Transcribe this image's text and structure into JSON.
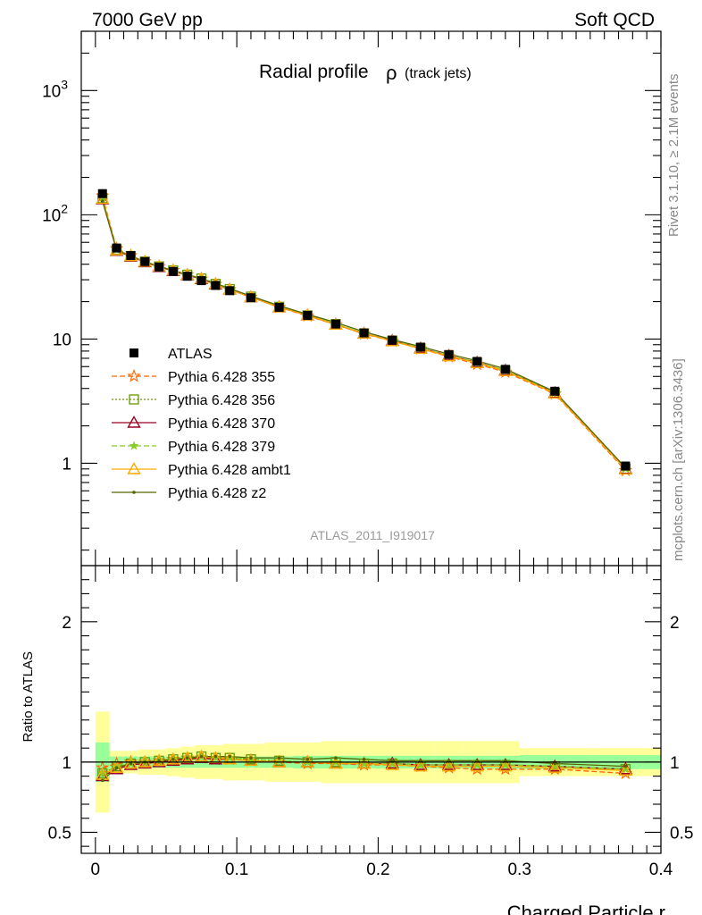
{
  "header": {
    "left": "7000 GeV pp",
    "right": "Soft QCD"
  },
  "side_labels": {
    "top": "Rivet 3.1.10, ≥ 2.1M events",
    "bottom": "mcplots.cern.ch [arXiv:1306.3436]"
  },
  "plot_title": {
    "main": "Radial profile",
    "rho": "ρ",
    "sub": "(track jets)"
  },
  "analysis_id": "ATLAS_2011_I919017",
  "xlabel": "Charged Particle r",
  "ratio_ylabel": "Ratio to ATLAS",
  "main_y_ticks": [
    {
      "value": 1,
      "base": "1",
      "exp": ""
    },
    {
      "value": 10,
      "base": "10",
      "exp": ""
    },
    {
      "value": 100,
      "base": "10",
      "exp": "2"
    },
    {
      "value": 1000,
      "base": "10",
      "exp": "3"
    }
  ],
  "ratio_y_ticks": [
    {
      "value": 0.5,
      "label": "0.5"
    },
    {
      "value": 1,
      "label": "1"
    },
    {
      "value": 2,
      "label": "2"
    }
  ],
  "x_ticks": [
    {
      "value": 0,
      "label": "0"
    },
    {
      "value": 0.1,
      "label": "0.1"
    },
    {
      "value": 0.2,
      "label": "0.2"
    },
    {
      "value": 0.3,
      "label": "0.3"
    },
    {
      "value": 0.4,
      "label": "0.4"
    }
  ],
  "chart_data": {
    "type": "line",
    "title": "Radial profile ρ (track jets)",
    "xlabel": "Charged Particle r",
    "ylabel": "",
    "xlim": [
      -0.01,
      0.4
    ],
    "ylim": [
      0.15,
      3000
    ],
    "yscale": "log",
    "ratio_ylim": [
      0.35,
      2.4
    ],
    "legend_position": "middle-left",
    "x": [
      0.005,
      0.015,
      0.025,
      0.035,
      0.045,
      0.055,
      0.065,
      0.075,
      0.085,
      0.095,
      0.11,
      0.13,
      0.15,
      0.17,
      0.19,
      0.21,
      0.23,
      0.25,
      0.27,
      0.29,
      0.325,
      0.375
    ],
    "bin_edges": [
      0,
      0.01,
      0.02,
      0.03,
      0.04,
      0.05,
      0.06,
      0.07,
      0.08,
      0.09,
      0.1,
      0.12,
      0.14,
      0.16,
      0.18,
      0.2,
      0.22,
      0.24,
      0.26,
      0.28,
      0.3,
      0.35,
      0.4
    ],
    "data": {
      "name": "ATLAS",
      "color": "#000000",
      "values": [
        148,
        54,
        47,
        42,
        38,
        35,
        32,
        29.5,
        27,
        24.5,
        21.5,
        18,
        15.5,
        13.2,
        11.2,
        9.8,
        8.6,
        7.5,
        6.6,
        5.7,
        3.8,
        0.95
      ]
    },
    "series": [
      {
        "name": "Pythia 6.428 355",
        "color": "#ff6600",
        "marker": "star-open",
        "dash": "6,3",
        "ratio": [
          0.96,
          0.99,
          1.0,
          1.0,
          1.01,
          1.02,
          1.03,
          1.03,
          1.02,
          1.02,
          1.01,
          1.0,
          0.99,
          0.99,
          0.98,
          0.98,
          0.97,
          0.96,
          0.95,
          0.95,
          0.95,
          0.92
        ]
      },
      {
        "name": "Pythia 6.428 356",
        "color": "#669900",
        "marker": "square-open",
        "dash": "2,2",
        "ratio": [
          0.92,
          0.97,
          0.99,
          1.0,
          1.01,
          1.02,
          1.03,
          1.04,
          1.03,
          1.03,
          1.02,
          1.01,
          1.0,
          1.0,
          0.99,
          0.99,
          0.98,
          0.98,
          0.98,
          0.98,
          0.97,
          0.95
        ]
      },
      {
        "name": "Pythia 6.428 370",
        "color": "#990022",
        "marker": "triangle-open",
        "dash": "",
        "ratio": [
          0.9,
          0.95,
          0.98,
          0.99,
          1.0,
          1.01,
          1.02,
          1.03,
          1.02,
          1.02,
          1.01,
          1.0,
          1.0,
          0.99,
          0.99,
          0.99,
          0.98,
          0.98,
          0.98,
          0.98,
          0.97,
          0.95
        ]
      },
      {
        "name": "Pythia 6.428 379",
        "color": "#88cc22",
        "marker": "star",
        "dash": "6,3",
        "ratio": [
          0.92,
          0.97,
          0.99,
          1.0,
          1.01,
          1.02,
          1.03,
          1.04,
          1.03,
          1.03,
          1.02,
          1.01,
          1.0,
          1.0,
          0.99,
          0.99,
          0.98,
          0.98,
          0.98,
          0.98,
          0.97,
          0.95
        ]
      },
      {
        "name": "Pythia 6.428 ambt1",
        "color": "#ffaa00",
        "marker": "triangle-open",
        "dash": "",
        "ratio": [
          0.91,
          0.96,
          0.99,
          1.0,
          1.01,
          1.02,
          1.03,
          1.04,
          1.03,
          1.02,
          1.01,
          1.0,
          1.0,
          0.99,
          0.99,
          0.98,
          0.97,
          0.97,
          0.97,
          0.97,
          0.96,
          0.94
        ]
      },
      {
        "name": "Pythia 6.428 z2",
        "color": "#556600",
        "marker": "dot",
        "dash": "",
        "ratio": [
          0.87,
          0.96,
          0.99,
          1.0,
          1.01,
          1.02,
          1.03,
          1.04,
          1.04,
          1.04,
          1.03,
          1.03,
          1.02,
          1.03,
          1.02,
          1.01,
          1.01,
          1.01,
          1.01,
          1.01,
          0.99,
          0.97
        ]
      }
    ],
    "bands": {
      "stat_color": "#99ff99",
      "total_color": "#ffff99",
      "stat_halfwidth": [
        0.14,
        0.04,
        0.04,
        0.04,
        0.04,
        0.04,
        0.04,
        0.04,
        0.04,
        0.04,
        0.04,
        0.04,
        0.045,
        0.045,
        0.045,
        0.045,
        0.045,
        0.045,
        0.045,
        0.045,
        0.05,
        0.05
      ],
      "total_halfwidth": [
        0.36,
        0.08,
        0.08,
        0.09,
        0.09,
        0.1,
        0.11,
        0.12,
        0.12,
        0.13,
        0.13,
        0.14,
        0.14,
        0.15,
        0.15,
        0.15,
        0.15,
        0.15,
        0.15,
        0.15,
        0.1,
        0.1
      ]
    }
  }
}
